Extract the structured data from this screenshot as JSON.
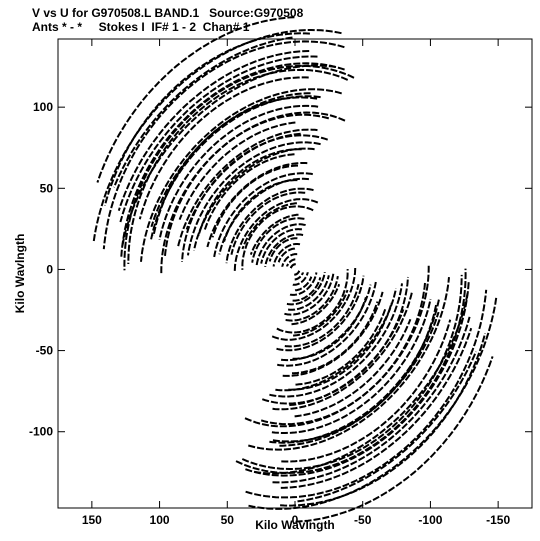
{
  "header": {
    "line1": "V vs U for G970508.L BAND.1   Source:G970508",
    "line2": "Ants * - *     Stokes I  IF# 1 - 2  Chan# 1"
  },
  "chart_data": {
    "type": "scatter",
    "title": "V vs U for G970508.L BAND.1   Source:G970508",
    "subtitle": "Ants * - *     Stokes I  IF# 1 - 2  Chan# 1",
    "xlabel": "Kilo Wavlngth",
    "ylabel": "Kilo Wavlngth",
    "xlim": [
      175,
      -175
    ],
    "ylim": [
      -147,
      142
    ],
    "x_ticks": [
      150,
      100,
      50,
      0,
      -50,
      -100,
      -150
    ],
    "x_tick_labels": [
      "150",
      "100",
      "50",
      "0",
      "-50",
      "-100",
      "-150"
    ],
    "y_ticks": [
      100,
      50,
      0,
      -50,
      -100
    ],
    "y_tick_labels": [
      "100",
      "50",
      "0",
      "-50",
      "-100"
    ],
    "grid": false,
    "legend": "none",
    "color": "#000000",
    "uv_tracks": {
      "description_free": true,
      "symmetric_about_origin": true,
      "radius_min": 3,
      "radius_max": 143,
      "track_count": 48,
      "hour_angle_span_deg": [
        -65,
        65
      ],
      "position_angle_deg": -35
    }
  }
}
